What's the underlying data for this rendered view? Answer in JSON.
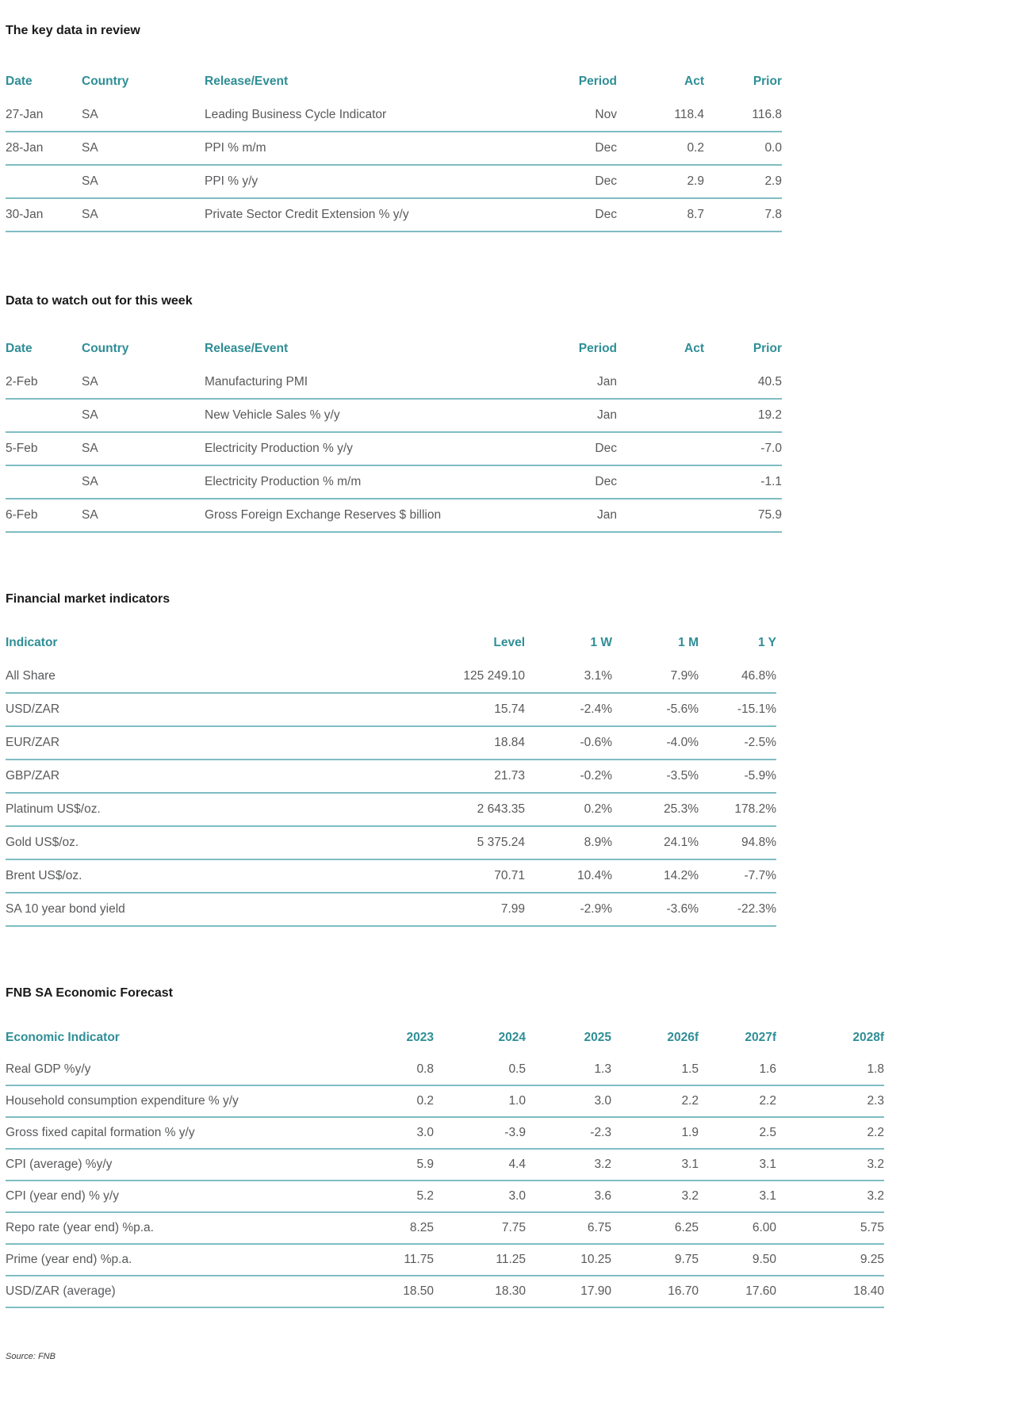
{
  "colors": {
    "header_teal": "#2F8E96",
    "row_border_teal": "#7FBDC3",
    "body_text": "#58595B",
    "title_text": "#1A1A1A"
  },
  "sections": {
    "key_data": {
      "title": "The key data in review",
      "table": {
        "headers": [
          "Date",
          "Country",
          "Release/Event",
          "Period",
          "Act",
          "Prior"
        ],
        "rows": [
          [
            "27-Jan",
            "SA",
            "Leading Business Cycle Indicator",
            "Nov",
            "118.4",
            "116.8"
          ],
          [
            "28-Jan",
            "SA",
            "PPI % m/m",
            "Dec",
            "0.2",
            "0.0"
          ],
          [
            "",
            "SA",
            "PPI % y/y",
            "Dec",
            "2.9",
            "2.9"
          ],
          [
            "30-Jan",
            "SA",
            "Private Sector Credit Extension % y/y",
            "Dec",
            "8.7",
            "7.8"
          ]
        ]
      }
    },
    "watch_week": {
      "title": "Data to watch out for this week",
      "table": {
        "headers": [
          "Date",
          "Country",
          "Release/Event",
          "Period",
          "Act",
          "Prior"
        ],
        "rows": [
          [
            "2-Feb",
            "SA",
            "Manufacturing PMI",
            "Jan",
            "",
            "40.5"
          ],
          [
            "",
            "SA",
            "New Vehicle Sales % y/y",
            "Jan",
            "",
            "19.2"
          ],
          [
            "5-Feb",
            "SA",
            "Electricity Production % y/y",
            "Dec",
            "",
            "-7.0"
          ],
          [
            "",
            "SA",
            "Electricity Production % m/m",
            "Dec",
            "",
            "-1.1"
          ],
          [
            "6-Feb",
            "SA",
            "Gross Foreign Exchange Reserves $ billion",
            "Jan",
            "",
            "75.9"
          ]
        ]
      }
    },
    "market": {
      "title": "Financial market indicators",
      "table": {
        "headers": [
          "Indicator",
          "Level",
          "1 W",
          "1 M",
          "1 Y"
        ],
        "rows": [
          [
            "All Share",
            "125 249.10",
            "3.1%",
            "7.9%",
            "46.8%"
          ],
          [
            "USD/ZAR",
            "15.74",
            "-2.4%",
            "-5.6%",
            "-15.1%"
          ],
          [
            "EUR/ZAR",
            "18.84",
            "-0.6%",
            "-4.0%",
            "-2.5%"
          ],
          [
            "GBP/ZAR",
            "21.73",
            "-0.2%",
            "-3.5%",
            "-5.9%"
          ],
          [
            "Platinum US$/oz.",
            "2 643.35",
            "0.2%",
            "25.3%",
            "178.2%"
          ],
          [
            "Gold US$/oz.",
            "5 375.24",
            "8.9%",
            "24.1%",
            "94.8%"
          ],
          [
            "Brent US$/oz.",
            "70.71",
            "10.4%",
            "14.2%",
            "-7.7%"
          ],
          [
            "SA 10 year bond yield",
            "7.99",
            "-2.9%",
            "-3.6%",
            "-22.3%"
          ]
        ]
      }
    },
    "forecast": {
      "title": "FNB SA Economic Forecast",
      "table": {
        "headers": [
          "Economic Indicator",
          "2023",
          "2024",
          "2025",
          "2026f",
          "2027f",
          "2028f"
        ],
        "rows": [
          [
            "Real GDP %y/y",
            "0.8",
            "0.5",
            "1.3",
            "1.5",
            "1.6",
            "1.8"
          ],
          [
            "Household consumption expenditure % y/y",
            "0.2",
            "1.0",
            "3.0",
            "2.2",
            "2.2",
            "2.3"
          ],
          [
            "Gross fixed capital formation % y/y",
            "3.0",
            "-3.9",
            "-2.3",
            "1.9",
            "2.5",
            "2.2"
          ],
          [
            "CPI (average) %y/y",
            "5.9",
            "4.4",
            "3.2",
            "3.1",
            "3.1",
            "3.2"
          ],
          [
            "CPI (year end) % y/y",
            "5.2",
            "3.0",
            "3.6",
            "3.2",
            "3.1",
            "3.2"
          ],
          [
            "Repo rate (year end) %p.a.",
            "8.25",
            "7.75",
            "6.75",
            "6.25",
            "6.00",
            "5.75"
          ],
          [
            "Prime (year end) %p.a.",
            "11.75",
            "11.25",
            "10.25",
            "9.75",
            "9.50",
            "9.25"
          ],
          [
            "USD/ZAR (average)",
            "18.50",
            "18.30",
            "17.90",
            "16.70",
            "17.60",
            "18.40"
          ]
        ]
      }
    }
  },
  "footer": {
    "source_note": "Source: FNB"
  }
}
